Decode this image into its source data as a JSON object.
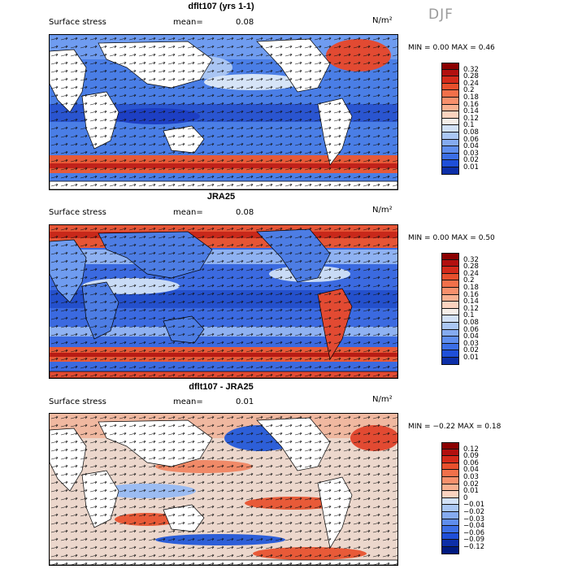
{
  "season": "DJF",
  "panels": [
    {
      "title": "dflt107 (yrs 1-1)",
      "variable": "Surface stress",
      "mean_label": "mean=",
      "mean": "0.08",
      "units": "N/m²",
      "min_label": "MIN =",
      "min": "0.00",
      "max_label": "MAX =",
      "max": "0.46",
      "colorbar": {
        "ticks": [
          "0.32",
          "0.28",
          "0.24",
          "0.2",
          "0.18",
          "0.16",
          "0.14",
          "0.12",
          "0.1",
          "0.08",
          "0.06",
          "0.04",
          "0.03",
          "0.02",
          "0.01"
        ],
        "colors": [
          "#8b0000",
          "#b2100f",
          "#d42a1a",
          "#e8502d",
          "#f2704a",
          "#f7906c",
          "#f9b090",
          "#fbd3bf",
          "#f6efe9",
          "#d2e1f7",
          "#aac7f4",
          "#85abf0",
          "#5f8eee",
          "#3c6fe6",
          "#1f4fd8",
          "#0d2fa8"
        ]
      }
    },
    {
      "title": "JRA25",
      "variable": "Surface stress",
      "mean_label": "mean=",
      "mean": "0.08",
      "units": "N/m²",
      "min_label": "MIN =",
      "min": "0.00",
      "max_label": "MAX =",
      "max": "0.50",
      "colorbar": {
        "ticks": [
          "0.32",
          "0.28",
          "0.24",
          "0.2",
          "0.18",
          "0.16",
          "0.14",
          "0.12",
          "0.1",
          "0.08",
          "0.06",
          "0.04",
          "0.03",
          "0.02",
          "0.01"
        ],
        "colors": [
          "#8b0000",
          "#b2100f",
          "#d42a1a",
          "#e8502d",
          "#f2704a",
          "#f7906c",
          "#f9b090",
          "#fbd3bf",
          "#f6efe9",
          "#d2e1f7",
          "#aac7f4",
          "#85abf0",
          "#5f8eee",
          "#3c6fe6",
          "#1f4fd8",
          "#0d2fa8"
        ]
      }
    },
    {
      "title": "dflt107 - JRA25",
      "variable": "Surface stress",
      "mean_label": "mean=",
      "mean": "0.01",
      "units": "N/m²",
      "min_label": "MIN =",
      "min": "−0.22",
      "max_label": "MAX =",
      "max": "0.18",
      "colorbar": {
        "ticks": [
          "0.12",
          "0.09",
          "0.06",
          "0.04",
          "0.03",
          "0.02",
          "0.01",
          "0",
          "−0.01",
          "−0.02",
          "−0.03",
          "−0.04",
          "−0.06",
          "−0.09",
          "−0.12"
        ],
        "colors": [
          "#8b0000",
          "#b2100f",
          "#d42a1a",
          "#e8502d",
          "#f2704a",
          "#f7906c",
          "#f9b090",
          "#fbd3bf",
          "#d2e1f7",
          "#aac7f4",
          "#85abf0",
          "#5f8eee",
          "#3c6fe6",
          "#1f4fd8",
          "#0d2fa8",
          "#001a80"
        ]
      }
    }
  ]
}
